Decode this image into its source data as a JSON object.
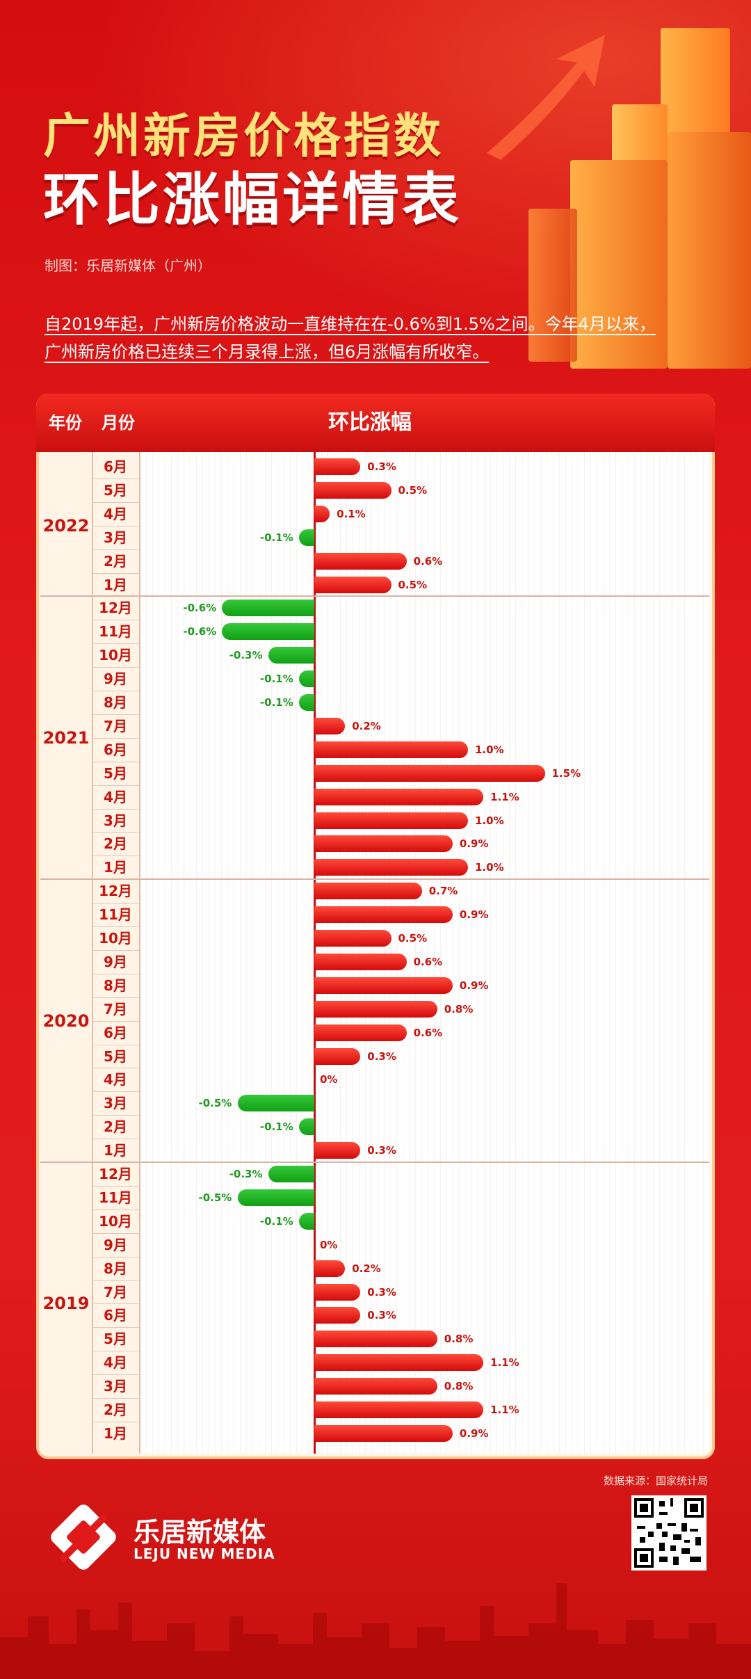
{
  "title": {
    "line1": "广州新房价格指数",
    "line2": "环比涨幅详情表"
  },
  "credit": "制图：乐居新媒体（广州）",
  "intro": {
    "line1": "自2019年起，广州新房价格波动一直维持在在-0.6%到1.5%之间。今年4月以来，",
    "line2": "广州新房价格已连续三个月录得上涨，但6月涨幅有所收窄。"
  },
  "table_header": {
    "year": "年份",
    "month": "月份",
    "change": "环比涨幅"
  },
  "colors": {
    "positive": "#e0140f",
    "negative": "#19a81c",
    "background": "#e0191a"
  },
  "chart_data": {
    "type": "bar",
    "orientation": "horizontal",
    "title": "环比涨幅",
    "unit": "%",
    "xlim": [
      -0.6,
      1.5
    ],
    "groups": [
      {
        "year": "2022",
        "rows": [
          {
            "month": "6月",
            "value": 0.3,
            "label": "0.3%"
          },
          {
            "month": "5月",
            "value": 0.5,
            "label": "0.5%"
          },
          {
            "month": "4月",
            "value": 0.1,
            "label": "0.1%"
          },
          {
            "month": "3月",
            "value": -0.1,
            "label": "-0.1%"
          },
          {
            "month": "2月",
            "value": 0.6,
            "label": "0.6%"
          },
          {
            "month": "1月",
            "value": 0.5,
            "label": "0.5%"
          }
        ]
      },
      {
        "year": "2021",
        "rows": [
          {
            "month": "12月",
            "value": -0.6,
            "label": "-0.6%"
          },
          {
            "month": "11月",
            "value": -0.6,
            "label": "-0.6%"
          },
          {
            "month": "10月",
            "value": -0.3,
            "label": "-0.3%"
          },
          {
            "month": "9月",
            "value": -0.1,
            "label": "-0.1%"
          },
          {
            "month": "8月",
            "value": -0.1,
            "label": "-0.1%"
          },
          {
            "month": "7月",
            "value": 0.2,
            "label": "0.2%"
          },
          {
            "month": "6月",
            "value": 1.0,
            "label": "1.0%"
          },
          {
            "month": "5月",
            "value": 1.5,
            "label": "1.5%"
          },
          {
            "month": "4月",
            "value": 1.1,
            "label": "1.1%"
          },
          {
            "month": "3月",
            "value": 1.0,
            "label": "1.0%"
          },
          {
            "month": "2月",
            "value": 0.9,
            "label": "0.9%"
          },
          {
            "month": "1月",
            "value": 1.0,
            "label": "1.0%"
          }
        ]
      },
      {
        "year": "2020",
        "rows": [
          {
            "month": "12月",
            "value": 0.7,
            "label": "0.7%"
          },
          {
            "month": "11月",
            "value": 0.9,
            "label": "0.9%"
          },
          {
            "month": "10月",
            "value": 0.5,
            "label": "0.5%"
          },
          {
            "month": "9月",
            "value": 0.6,
            "label": "0.6%"
          },
          {
            "month": "8月",
            "value": 0.9,
            "label": "0.9%"
          },
          {
            "month": "7月",
            "value": 0.8,
            "label": "0.8%"
          },
          {
            "month": "6月",
            "value": 0.6,
            "label": "0.6%"
          },
          {
            "month": "5月",
            "value": 0.3,
            "label": "0.3%"
          },
          {
            "month": "4月",
            "value": 0,
            "label": "0%"
          },
          {
            "month": "3月",
            "value": -0.5,
            "label": "-0.5%"
          },
          {
            "month": "2月",
            "value": -0.1,
            "label": "-0.1%"
          },
          {
            "month": "1月",
            "value": 0.3,
            "label": "0.3%"
          }
        ]
      },
      {
        "year": "2019",
        "rows": [
          {
            "month": "12月",
            "value": -0.3,
            "label": "-0.3%"
          },
          {
            "month": "11月",
            "value": -0.5,
            "label": "-0.5%"
          },
          {
            "month": "10月",
            "value": -0.1,
            "label": "-0.1%"
          },
          {
            "month": "9月",
            "value": 0,
            "label": "0%"
          },
          {
            "month": "8月",
            "value": 0.2,
            "label": "0.2%"
          },
          {
            "month": "7月",
            "value": 0.3,
            "label": "0.3%"
          },
          {
            "month": "6月",
            "value": 0.3,
            "label": "0.3%"
          },
          {
            "month": "5月",
            "value": 0.8,
            "label": "0.8%"
          },
          {
            "month": "4月",
            "value": 1.1,
            "label": "1.1%"
          },
          {
            "month": "3月",
            "value": 0.8,
            "label": "0.8%"
          },
          {
            "month": "2月",
            "value": 1.1,
            "label": "1.1%"
          },
          {
            "month": "1月",
            "value": 0.9,
            "label": "0.9%"
          }
        ]
      }
    ]
  },
  "source": "数据来源：国家统计局",
  "brand": {
    "name_cn": "乐居新媒体",
    "name_en": "LEJU NEW MEDIA",
    "logo_icon": "leju-logo-icon",
    "qr_icon": "qr-code-icon"
  }
}
